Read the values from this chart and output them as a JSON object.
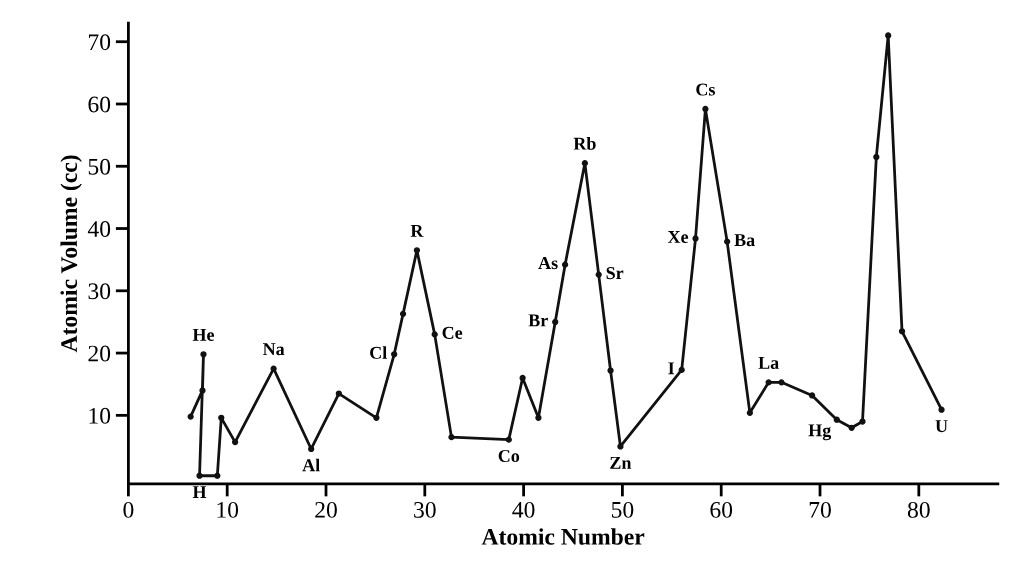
{
  "chart_data": {
    "type": "line",
    "xlabel": "Atomic Number",
    "ylabel": "Atomic Volume (cc)",
    "x": [
      6.3,
      7.5,
      7.6,
      7.2,
      9,
      9.4,
      10.8,
      14.7,
      18.5,
      21.3,
      25.1,
      26.9,
      27.8,
      29.2,
      31,
      32.7,
      38.5,
      39.9,
      41.5,
      43.2,
      44.2,
      46.2,
      47.6,
      48.8,
      49.8,
      56,
      57.4,
      58.4,
      60.6,
      62.9,
      64.8,
      66.1,
      69.2,
      71.7,
      73.2,
      74.3,
      75.7,
      76.9,
      78.3,
      82.3
    ],
    "series": [
      {
        "color": "#111111",
        "values": [
          9.8,
          14,
          19.8,
          0.3,
          0.3,
          9.6,
          5.7,
          17.5,
          4.6,
          13.5,
          9.6,
          19.8,
          26.3,
          36.5,
          23,
          6.5,
          6.1,
          16,
          9.6,
          25,
          34.2,
          50.5,
          32.6,
          17.2,
          5,
          17.3,
          38.4,
          59.2,
          37.9,
          10.4,
          15.3,
          15.3,
          13.2,
          9.3,
          8,
          9,
          51.5,
          71,
          23.5,
          10.9
        ]
      }
    ],
    "xlim": [
      0,
      88
    ],
    "ylim": [
      -1,
      73
    ],
    "xticks": [
      0,
      10,
      20,
      30,
      40,
      50,
      60,
      70,
      80
    ],
    "yticks": [
      10,
      20,
      30,
      40,
      50,
      60,
      70
    ],
    "grid": false,
    "marker": "circle",
    "line_style": "solid",
    "annotations": [
      {
        "text": "He",
        "x": 7.6,
        "y": 19.8
      },
      {
        "text": "H",
        "x": 7.2,
        "y": 0.3
      },
      {
        "text": "Na",
        "x": 14.7,
        "y": 17.5
      },
      {
        "text": "Al",
        "x": 18.5,
        "y": 4.6
      },
      {
        "text": "Cl",
        "x": 26.9,
        "y": 19.8
      },
      {
        "text": "R",
        "x": 29.2,
        "y": 36.5
      },
      {
        "text": "Ce",
        "x": 31,
        "y": 23
      },
      {
        "text": "Co",
        "x": 38.5,
        "y": 6.1
      },
      {
        "text": "Br",
        "x": 43.2,
        "y": 25
      },
      {
        "text": "As",
        "x": 44.2,
        "y": 34.2
      },
      {
        "text": "Rb",
        "x": 46.2,
        "y": 50.5
      },
      {
        "text": "Sr",
        "x": 47.6,
        "y": 32.6
      },
      {
        "text": "Zn",
        "x": 49.8,
        "y": 5
      },
      {
        "text": "I",
        "x": 56,
        "y": 17.3
      },
      {
        "text": "Xe",
        "x": 57.4,
        "y": 38.4
      },
      {
        "text": "Cs",
        "x": 58.4,
        "y": 59.2
      },
      {
        "text": "Ba",
        "x": 60.6,
        "y": 37.9
      },
      {
        "text": "La",
        "x": 64.8,
        "y": 15.3
      },
      {
        "text": "Hg",
        "x": 71.7,
        "y": 9.3
      },
      {
        "text": "U",
        "x": 82.3,
        "y": 10.9
      }
    ]
  }
}
